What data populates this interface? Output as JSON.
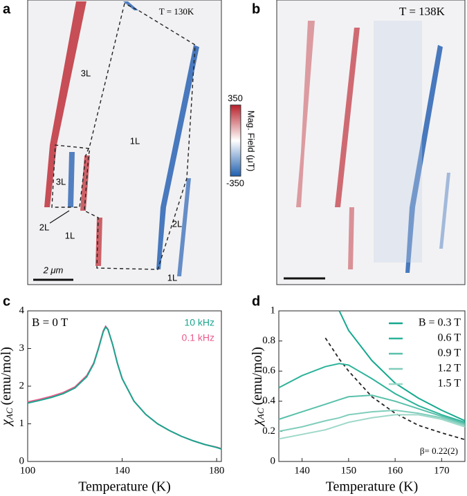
{
  "panels": {
    "a": {
      "letter": "a",
      "temperature": "T = 130K",
      "regions": [
        "3L",
        "1L",
        "3L",
        "2L",
        "1L",
        "2L",
        "1L"
      ],
      "scale_bar": "2 μm"
    },
    "b": {
      "letter": "b",
      "temperature": "T = 138K"
    },
    "c": {
      "letter": "c"
    },
    "d": {
      "letter": "d"
    }
  },
  "colorbar": {
    "max": 350,
    "min": -350,
    "label": "Mag. Field (μT)"
  },
  "chart_data": [
    {
      "type": "line",
      "xlabel": "Temperature (K)",
      "ylabel_symbol": "χ",
      "ylabel_subscript": "AC",
      "ylabel_unit": "(emu/mol)",
      "annotation": "B = 0 T",
      "x": [
        100,
        105,
        110,
        115,
        120,
        125,
        128,
        130,
        132,
        133,
        134,
        136,
        138,
        140,
        145,
        150,
        155,
        160,
        165,
        170,
        175,
        180,
        182
      ],
      "series": [
        {
          "name": "10 kHz",
          "color": "#1aa58f",
          "values": [
            1.55,
            1.62,
            1.7,
            1.8,
            1.95,
            2.25,
            2.6,
            3.0,
            3.45,
            3.57,
            3.5,
            3.1,
            2.6,
            2.2,
            1.6,
            1.25,
            1.0,
            0.82,
            0.67,
            0.55,
            0.45,
            0.37,
            0.33
          ]
        },
        {
          "name": "0.1 kHz",
          "color": "#ea5a8a",
          "values": [
            1.58,
            1.65,
            1.73,
            1.83,
            1.98,
            2.28,
            2.62,
            3.02,
            3.47,
            3.59,
            3.51,
            3.1,
            2.6,
            2.2,
            1.6,
            1.25,
            1.0,
            0.82,
            0.67,
            0.55,
            0.45,
            0.38,
            0.34
          ]
        }
      ],
      "xlim": [
        100,
        182
      ],
      "xticks": [
        100,
        140,
        180
      ],
      "ylim": [
        0,
        4
      ],
      "yticks": [
        0,
        1,
        2,
        3,
        4
      ]
    },
    {
      "type": "line",
      "xlabel": "Temperature (K)",
      "ylabel_symbol": "χ",
      "ylabel_subscript": "AC",
      "ylabel_unit": "(emu/mol)",
      "annotation": "β= 0.22(2)",
      "x": [
        135,
        140,
        145,
        148,
        150,
        155,
        160,
        165,
        170,
        175
      ],
      "series": [
        {
          "name": "B = 0.3 T",
          "color": "#14a88e",
          "values": [
            null,
            null,
            null,
            1.0,
            0.87,
            0.67,
            0.52,
            0.42,
            0.34,
            0.27
          ]
        },
        {
          "name": "0.6 T",
          "color": "#2db39a",
          "values": [
            0.49,
            0.57,
            0.63,
            0.65,
            0.64,
            0.55,
            0.45,
            0.37,
            0.31,
            0.26
          ]
        },
        {
          "name": "0.9 T",
          "color": "#58c0aa",
          "values": [
            0.28,
            0.33,
            0.38,
            0.41,
            0.43,
            0.44,
            0.4,
            0.35,
            0.3,
            0.25
          ]
        },
        {
          "name": "1.2 T",
          "color": "#7fcdbb",
          "values": [
            0.2,
            0.23,
            0.27,
            0.29,
            0.31,
            0.33,
            0.34,
            0.32,
            0.29,
            0.24
          ]
        },
        {
          "name": "1.5 T",
          "color": "#9dd8c8",
          "values": [
            0.15,
            0.18,
            0.21,
            0.24,
            0.26,
            0.29,
            0.31,
            0.31,
            0.28,
            0.23
          ]
        }
      ],
      "fit": {
        "color": "#222222",
        "dashed": true,
        "values": [
          null,
          null,
          0.82,
          0.68,
          0.6,
          0.43,
          0.32,
          0.24,
          0.19,
          0.145
        ]
      },
      "xlim": [
        135,
        175
      ],
      "xticks": [
        140,
        150,
        160,
        170
      ],
      "ylim": [
        0,
        1
      ],
      "yticks": [
        0,
        0.2,
        0.4,
        0.6,
        0.8,
        1
      ]
    }
  ]
}
